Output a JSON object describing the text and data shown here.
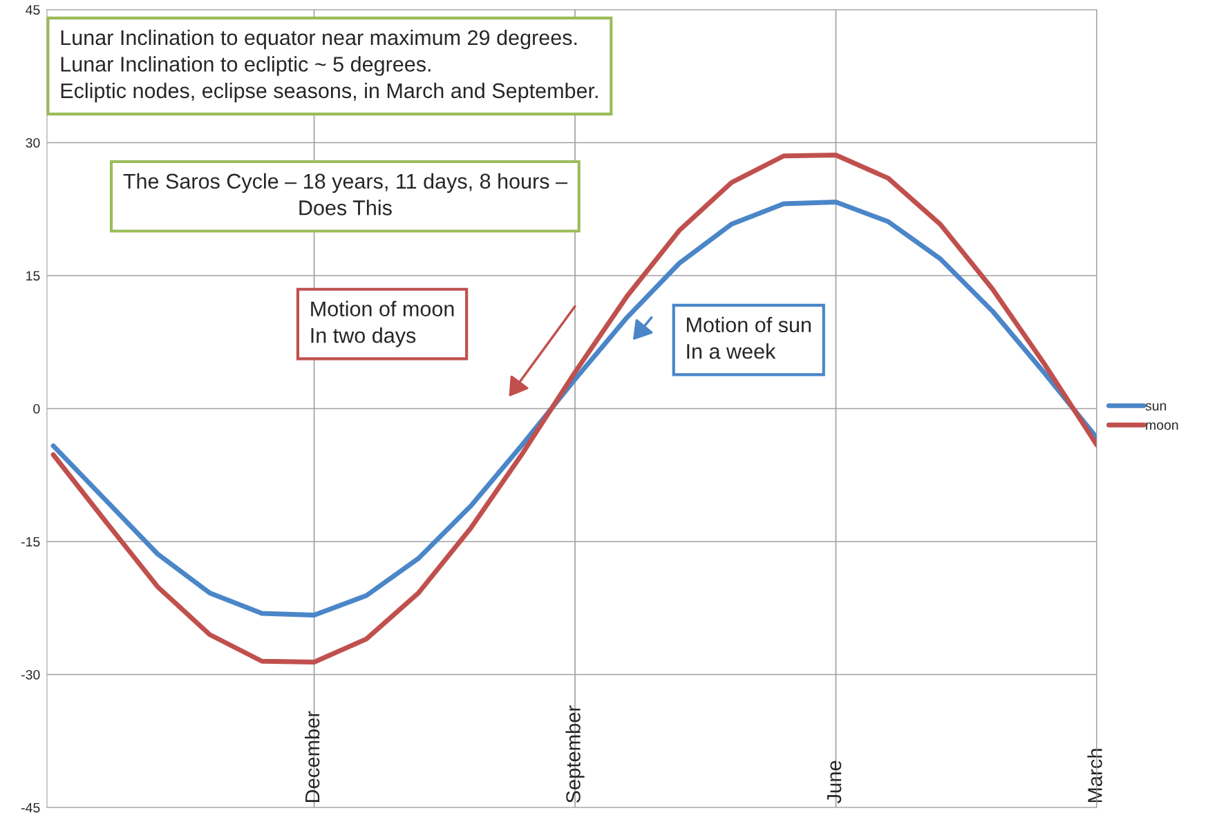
{
  "chart_data": {
    "type": "line",
    "categories": [
      null,
      null,
      null,
      null,
      null,
      "December",
      null,
      null,
      null,
      null,
      "September",
      null,
      null,
      null,
      null,
      "June",
      null,
      null,
      null,
      null,
      "March"
    ],
    "series": [
      {
        "name": "sun",
        "color": "#4a86c8",
        "values": [
          -4.2,
          -10.3,
          -16.4,
          -20.8,
          -23.1,
          -23.3,
          -21.1,
          -16.9,
          -11.0,
          -4.0,
          3.3,
          10.3,
          16.4,
          20.8,
          23.1,
          23.3,
          21.1,
          16.9,
          11.0,
          4.0,
          -3.3
        ]
      },
      {
        "name": "moon",
        "color": "#c0504d",
        "values": [
          -5.2,
          -12.7,
          -20.1,
          -25.5,
          -28.5,
          -28.6,
          -26.0,
          -20.8,
          -13.5,
          -5.0,
          4.1,
          12.7,
          20.1,
          25.5,
          28.5,
          28.6,
          26.0,
          20.8,
          13.5,
          5.0,
          -4.1
        ]
      }
    ],
    "ylim": [
      -45,
      45
    ],
    "yticks": [
      -45,
      -30,
      -15,
      0,
      15,
      30,
      45
    ],
    "grid": true,
    "legend": "right",
    "marker": "none",
    "line_style": "solid",
    "annotations": [
      "Lunar Inclination to equator near maximum 29 degrees.\nLunar Inclination to ecliptic ~ 5 degrees.\nEcliptic nodes, eclipse seasons, in March and September.",
      "The Saros Cycle – 18 years, 11 days, 8 hours –\nDoes This",
      "Motion of moon\nIn two days",
      "Motion of sun\nIn a week"
    ]
  }
}
